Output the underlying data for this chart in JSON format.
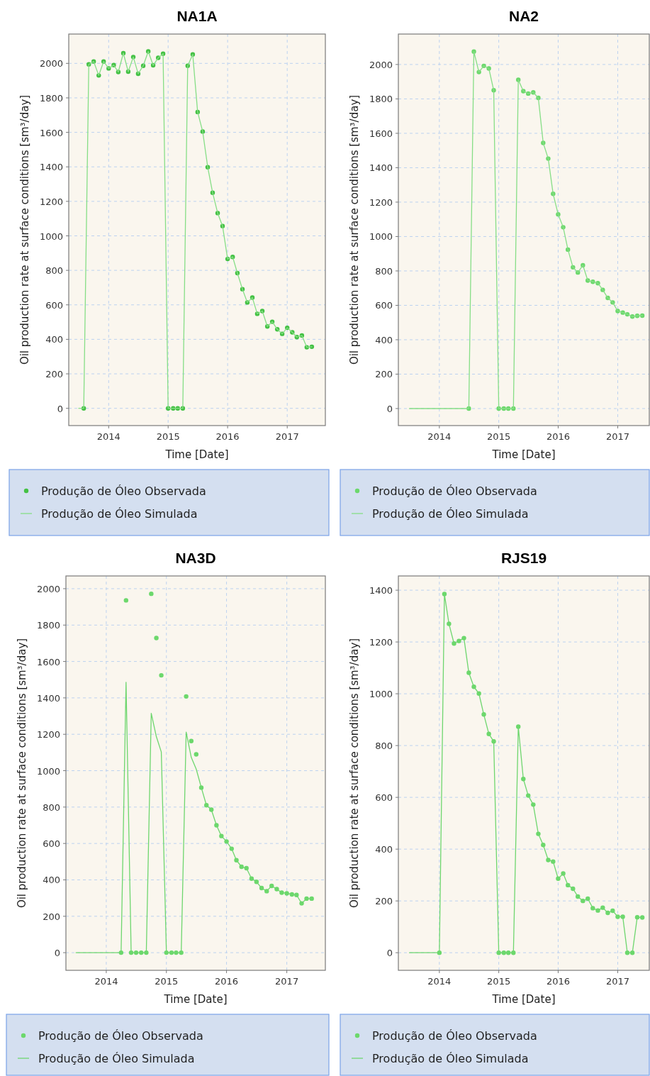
{
  "chart_data": [
    {
      "type": "line",
      "title": "NA1A",
      "xlabel": "Time [Date]",
      "ylabel": "Oil production rate at surface conditions [sm³/day]",
      "xlim": [
        "2013-05-01",
        "2017-08-23"
      ],
      "ylim": [
        -100,
        2170
      ],
      "xticks": [
        "2014",
        "2015",
        "2016",
        "2017"
      ],
      "yticks": [
        0,
        200,
        400,
        600,
        800,
        1000,
        1200,
        1400,
        1600,
        1800,
        2000
      ],
      "grid": true,
      "legend": "bottom",
      "x": [
        "2013-07",
        "2013-08",
        "2013-09",
        "2013-10",
        "2013-11",
        "2013-12",
        "2014-01",
        "2014-02",
        "2014-03",
        "2014-04",
        "2014-05",
        "2014-06",
        "2014-07",
        "2014-08",
        "2014-09",
        "2014-10",
        "2014-11",
        "2014-12",
        "2015-01",
        "2015-02",
        "2015-03",
        "2015-04",
        "2015-05",
        "2015-06",
        "2015-07",
        "2015-08",
        "2015-09",
        "2015-10",
        "2015-11",
        "2015-12",
        "2016-01",
        "2016-02",
        "2016-03",
        "2016-04",
        "2016-05",
        "2016-06",
        "2016-07",
        "2016-08",
        "2016-09",
        "2016-10",
        "2016-11",
        "2016-12",
        "2017-01",
        "2017-02",
        "2017-03",
        "2017-04",
        "2017-05",
        "2017-06"
      ],
      "series": [
        {
          "name": "Produção de Óleo Observada",
          "type": "scatter",
          "marker": "circle",
          "color": "#44c144",
          "values": [
            null,
            0,
            1994,
            2011,
            1930,
            2011,
            1971,
            1990,
            1950,
            2059,
            1952,
            2037,
            1940,
            1986,
            2069,
            1989,
            2032,
            2056,
            0,
            0,
            0,
            0,
            1986,
            2052,
            1718,
            1605,
            1398,
            1250,
            1132,
            1057,
            866,
            878,
            784,
            691,
            614,
            642,
            548,
            564,
            475,
            502,
            458,
            432,
            467,
            441,
            413,
            422,
            354,
            357
          ]
        },
        {
          "name": "Produção de Óleo Simulada",
          "type": "line",
          "marker": "none",
          "color": "#86de86",
          "values": [
            0,
            0,
            1994,
            2011,
            1930,
            2011,
            1971,
            1990,
            1950,
            2059,
            1952,
            2037,
            1940,
            1986,
            2069,
            1989,
            2032,
            2056,
            0,
            0,
            0,
            0,
            1986,
            2052,
            1718,
            1605,
            1398,
            1250,
            1132,
            1057,
            866,
            878,
            784,
            691,
            614,
            642,
            548,
            564,
            475,
            502,
            458,
            432,
            467,
            441,
            413,
            422,
            354,
            357
          ]
        }
      ]
    },
    {
      "type": "line",
      "title": "NA2",
      "xlabel": "Time [Date]",
      "ylabel": "Oil production rate at surface conditions [sm³/day]",
      "xlim": [
        "2013-04-24",
        "2017-07-14"
      ],
      "ylim": [
        -99,
        2177
      ],
      "xticks": [
        "2014",
        "2015",
        "2016",
        "2017"
      ],
      "yticks": [
        0,
        200,
        400,
        600,
        800,
        1000,
        1200,
        1400,
        1600,
        1800,
        2000
      ],
      "grid": true,
      "legend": "bottom",
      "x": [
        "2013-07",
        "2013-08",
        "2013-09",
        "2013-10",
        "2013-11",
        "2013-12",
        "2014-01",
        "2014-02",
        "2014-03",
        "2014-04",
        "2014-05",
        "2014-06",
        "2014-07",
        "2014-08",
        "2014-09",
        "2014-10",
        "2014-11",
        "2014-12",
        "2015-01",
        "2015-02",
        "2015-03",
        "2015-04",
        "2015-05",
        "2015-06",
        "2015-07",
        "2015-08",
        "2015-09",
        "2015-10",
        "2015-11",
        "2015-12",
        "2016-01",
        "2016-02",
        "2016-03",
        "2016-04",
        "2016-05",
        "2016-06",
        "2016-07",
        "2016-08",
        "2016-09",
        "2016-10",
        "2016-11",
        "2016-12",
        "2017-01",
        "2017-02",
        "2017-03",
        "2017-04",
        "2017-05",
        "2017-06"
      ],
      "series": [
        {
          "name": "Produção de Óleo Observada",
          "type": "scatter",
          "marker": "circle",
          "color": "#6cd86c",
          "values": [
            null,
            null,
            null,
            null,
            null,
            null,
            null,
            null,
            null,
            null,
            null,
            null,
            0,
            2075,
            1956,
            1992,
            1977,
            1850,
            0,
            0,
            0,
            0,
            1911,
            1845,
            1831,
            1838,
            1806,
            1544,
            1453,
            1248,
            1129,
            1054,
            924,
            821,
            791,
            833,
            744,
            737,
            729,
            690,
            643,
            617,
            567,
            558,
            548,
            535,
            539,
            540
          ]
        },
        {
          "name": "Produção de Óleo Simulada",
          "type": "line",
          "marker": "none",
          "color": "#86de86",
          "values": [
            0,
            0,
            0,
            0,
            0,
            0,
            0,
            0,
            0,
            0,
            0,
            0,
            0,
            2075,
            1956,
            1992,
            1977,
            1850,
            0,
            0,
            0,
            0,
            1911,
            1845,
            1831,
            1838,
            1806,
            1544,
            1453,
            1248,
            1129,
            1054,
            924,
            821,
            791,
            833,
            744,
            737,
            729,
            690,
            643,
            617,
            567,
            558,
            548,
            535,
            539,
            540
          ]
        }
      ]
    },
    {
      "type": "line",
      "title": "NA3D",
      "xlabel": "Time [Date]",
      "ylabel": "Oil production rate at surface conditions [sm³/day]",
      "xlim": [
        "2013-05-01",
        "2017-08-23"
      ],
      "ylim": [
        -97,
        2070
      ],
      "xticks": [
        "2014",
        "2015",
        "2016",
        "2017"
      ],
      "yticks": [
        0,
        200,
        400,
        600,
        800,
        1000,
        1200,
        1400,
        1600,
        1800,
        2000
      ],
      "grid": true,
      "legend": "bottom",
      "x": [
        "2013-07",
        "2013-08",
        "2013-09",
        "2013-10",
        "2013-11",
        "2013-12",
        "2014-01",
        "2014-02",
        "2014-03",
        "2014-04",
        "2014-05",
        "2014-06",
        "2014-07",
        "2014-08",
        "2014-09",
        "2014-10",
        "2014-11",
        "2014-12",
        "2015-01",
        "2015-02",
        "2015-03",
        "2015-04",
        "2015-05",
        "2015-06",
        "2015-07",
        "2015-08",
        "2015-09",
        "2015-10",
        "2015-11",
        "2015-12",
        "2016-01",
        "2016-02",
        "2016-03",
        "2016-04",
        "2016-05",
        "2016-06",
        "2016-07",
        "2016-08",
        "2016-09",
        "2016-10",
        "2016-11",
        "2016-12",
        "2017-01",
        "2017-02",
        "2017-03",
        "2017-04",
        "2017-05",
        "2017-06"
      ],
      "series": [
        {
          "name": "Produção de Óleo Observada",
          "type": "scatter",
          "marker": "circle",
          "color": "#6cd86c",
          "values": [
            null,
            null,
            null,
            null,
            null,
            null,
            null,
            null,
            null,
            0,
            1936,
            0,
            0,
            0,
            0,
            1972,
            1729,
            1524,
            0,
            0,
            0,
            0,
            1408,
            1163,
            1090,
            907,
            810,
            786,
            700,
            641,
            611,
            571,
            508,
            472,
            464,
            407,
            389,
            355,
            338,
            367,
            349,
            330,
            326,
            320,
            317,
            271,
            297,
            297
          ]
        },
        {
          "name": "Produção de Óleo Simulada",
          "type": "line",
          "marker": "none",
          "color": "#6ed66e",
          "values": [
            0,
            0,
            0,
            0,
            0,
            0,
            0,
            0,
            0,
            0,
            1486,
            0,
            0,
            0,
            0,
            1315,
            1187,
            1103,
            0,
            0,
            0,
            0,
            1212,
            1073,
            1009,
            907,
            810,
            786,
            700,
            641,
            611,
            571,
            508,
            472,
            464,
            407,
            389,
            355,
            338,
            367,
            349,
            330,
            326,
            320,
            317,
            271,
            297,
            297
          ]
        }
      ]
    },
    {
      "type": "line",
      "title": "RJS19",
      "xlabel": "Time [Date]",
      "ylabel": "Oil production rate at surface conditions [sm³/day]",
      "xlim": [
        "2013-04-24",
        "2017-07-14"
      ],
      "ylim": [
        -68,
        1455
      ],
      "xticks": [
        "2014",
        "2015",
        "2016",
        "2017"
      ],
      "yticks": [
        0,
        200,
        400,
        600,
        800,
        1000,
        1200,
        1400
      ],
      "grid": true,
      "legend": "bottom",
      "x": [
        "2013-07",
        "2013-08",
        "2013-09",
        "2013-10",
        "2013-11",
        "2013-12",
        "2014-01",
        "2014-02",
        "2014-03",
        "2014-04",
        "2014-05",
        "2014-06",
        "2014-07",
        "2014-08",
        "2014-09",
        "2014-10",
        "2014-11",
        "2014-12",
        "2015-01",
        "2015-02",
        "2015-03",
        "2015-04",
        "2015-05",
        "2015-06",
        "2015-07",
        "2015-08",
        "2015-09",
        "2015-10",
        "2015-11",
        "2015-12",
        "2016-01",
        "2016-02",
        "2016-03",
        "2016-04",
        "2016-05",
        "2016-06",
        "2016-07",
        "2016-08",
        "2016-09",
        "2016-10",
        "2016-11",
        "2016-12",
        "2017-01",
        "2017-02",
        "2017-03",
        "2017-04",
        "2017-05",
        "2017-06"
      ],
      "series": [
        {
          "name": "Produção de Óleo Observada",
          "type": "scatter",
          "marker": "circle",
          "color": "#6cd86c",
          "values": [
            null,
            null,
            null,
            null,
            null,
            null,
            0,
            1385,
            1270,
            1194,
            1204,
            1215,
            1081,
            1027,
            1001,
            920,
            845,
            816,
            0,
            0,
            0,
            0,
            873,
            671,
            607,
            572,
            459,
            416,
            358,
            352,
            286,
            306,
            261,
            247,
            217,
            200,
            209,
            172,
            163,
            174,
            154,
            162,
            139,
            139,
            0,
            0,
            137,
            136
          ]
        },
        {
          "name": "Produção de Óleo Simulada",
          "type": "line",
          "marker": "none",
          "color": "#6ed66e",
          "values": [
            0,
            0,
            0,
            0,
            0,
            0,
            0,
            1385,
            1270,
            1194,
            1204,
            1215,
            1081,
            1027,
            1001,
            920,
            845,
            816,
            0,
            0,
            0,
            0,
            873,
            671,
            607,
            572,
            459,
            416,
            358,
            352,
            286,
            306,
            261,
            247,
            217,
            200,
            209,
            172,
            163,
            174,
            154,
            162,
            139,
            139,
            0,
            0,
            137,
            136
          ]
        }
      ]
    }
  ]
}
